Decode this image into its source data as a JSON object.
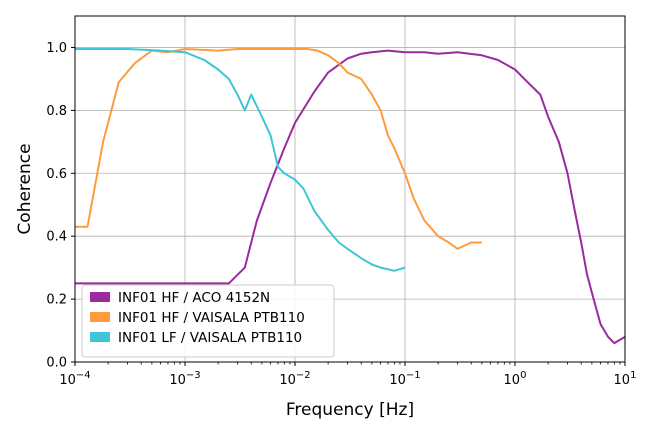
{
  "chart_data": {
    "type": "line",
    "title": "",
    "xlabel": "Frequency [Hz]",
    "ylabel": "Coherence",
    "xscale": "log",
    "xlim": [
      0.0001,
      10
    ],
    "ylim": [
      0.0,
      1.1
    ],
    "grid": true,
    "legend_position": "lower-left",
    "y_ticks": [
      {
        "value": 0.0,
        "label": "0.0"
      },
      {
        "value": 0.2,
        "label": "0.2"
      },
      {
        "value": 0.4,
        "label": "0.4"
      },
      {
        "value": 0.6,
        "label": "0.6"
      },
      {
        "value": 0.8,
        "label": "0.8"
      },
      {
        "value": 1.0,
        "label": "1.0"
      }
    ],
    "x_ticks": [
      {
        "value": 0.0001,
        "base": "10",
        "exp": "−4"
      },
      {
        "value": 0.001,
        "base": "10",
        "exp": "−3"
      },
      {
        "value": 0.01,
        "base": "10",
        "exp": "−2"
      },
      {
        "value": 0.1,
        "base": "10",
        "exp": "−1"
      },
      {
        "value": 1,
        "base": "10",
        "exp": "0"
      },
      {
        "value": 10,
        "base": "10",
        "exp": "1"
      }
    ],
    "series": [
      {
        "name": "INF01 HF / ACO 4152N",
        "color": "#9b2a9e",
        "x": [
          0.0001,
          0.001,
          0.0025,
          0.0035,
          0.0045,
          0.006,
          0.008,
          0.01,
          0.015,
          0.02,
          0.03,
          0.04,
          0.05,
          0.07,
          0.1,
          0.15,
          0.2,
          0.3,
          0.5,
          0.7,
          1.0,
          1.3,
          1.7,
          2.0,
          2.5,
          3.0,
          3.5,
          4.0,
          4.5,
          5.0,
          6.0,
          7.0,
          8.0,
          10.0
        ],
        "values": [
          0.25,
          0.25,
          0.25,
          0.3,
          0.45,
          0.57,
          0.68,
          0.76,
          0.86,
          0.92,
          0.965,
          0.98,
          0.985,
          0.99,
          0.985,
          0.985,
          0.98,
          0.985,
          0.975,
          0.96,
          0.93,
          0.89,
          0.85,
          0.78,
          0.7,
          0.6,
          0.48,
          0.38,
          0.28,
          0.22,
          0.12,
          0.08,
          0.06,
          0.08
        ]
      },
      {
        "name": "INF01 HF / VAISALA PTB110",
        "color": "#ff9b3d",
        "x": [
          0.0001,
          0.00013,
          0.00018,
          0.00025,
          0.00035,
          0.0005,
          0.0007,
          0.001,
          0.002,
          0.003,
          0.005,
          0.007,
          0.01,
          0.013,
          0.016,
          0.02,
          0.025,
          0.03,
          0.04,
          0.05,
          0.06,
          0.07,
          0.08,
          0.1,
          0.12,
          0.15,
          0.2,
          0.25,
          0.3,
          0.4,
          0.5
        ],
        "values": [
          0.43,
          0.43,
          0.7,
          0.89,
          0.95,
          0.99,
          0.985,
          0.995,
          0.99,
          0.995,
          0.995,
          0.995,
          0.995,
          0.995,
          0.99,
          0.975,
          0.95,
          0.92,
          0.9,
          0.85,
          0.8,
          0.72,
          0.68,
          0.6,
          0.52,
          0.45,
          0.4,
          0.38,
          0.36,
          0.38,
          0.38
        ]
      },
      {
        "name": "INF01 LF / VAISALA PTB110",
        "color": "#3cc6d6",
        "x": [
          0.0001,
          0.0003,
          0.0006,
          0.001,
          0.0015,
          0.002,
          0.0025,
          0.003,
          0.0035,
          0.004,
          0.005,
          0.006,
          0.007,
          0.008,
          0.01,
          0.012,
          0.015,
          0.02,
          0.025,
          0.03,
          0.04,
          0.05,
          0.06,
          0.08,
          0.1
        ],
        "values": [
          0.995,
          0.995,
          0.99,
          0.985,
          0.96,
          0.93,
          0.9,
          0.85,
          0.8,
          0.85,
          0.78,
          0.72,
          0.62,
          0.6,
          0.58,
          0.55,
          0.48,
          0.42,
          0.38,
          0.36,
          0.33,
          0.31,
          0.3,
          0.29,
          0.3
        ]
      }
    ]
  }
}
